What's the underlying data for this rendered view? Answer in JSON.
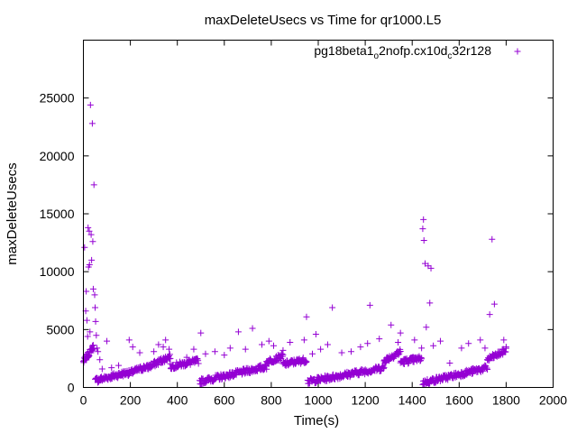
{
  "chart_data": {
    "type": "scatter",
    "title": "maxDeleteUsecs vs Time for qr1000.L5",
    "xlabel": "Time(s)",
    "ylabel": "maxDeleteUsecs",
    "xlim": [
      0,
      2000
    ],
    "ylim": [
      0,
      30000
    ],
    "xticks": [
      0,
      200,
      400,
      600,
      800,
      1000,
      1200,
      1400,
      1600,
      1800,
      2000
    ],
    "yticks": [
      0,
      5000,
      10000,
      15000,
      20000,
      25000
    ],
    "grid": false,
    "legend_position": "top-right",
    "marker": "+",
    "series": [
      {
        "name": "pg18beta1_o2nofp.cx10d_c32r128",
        "legend_parts": [
          {
            "text": "pg18beta1",
            "sub": false
          },
          {
            "text": "o",
            "sub": true
          },
          {
            "text": "2nofp.cx10d",
            "sub": false
          },
          {
            "text": "c",
            "sub": true
          },
          {
            "text": "32r128",
            "sub": false
          }
        ],
        "color": "#9400d3",
        "segments": [
          {
            "x0": 0,
            "x1": 45,
            "y0": 2200,
            "y1": 3600,
            "n": 30
          },
          {
            "x0": 50,
            "x1": 190,
            "y0": 600,
            "y1": 1300,
            "n": 75
          },
          {
            "x0": 190,
            "x1": 270,
            "y0": 1200,
            "y1": 1800,
            "n": 40
          },
          {
            "x0": 270,
            "x1": 370,
            "y0": 1700,
            "y1": 2700,
            "n": 55
          },
          {
            "x0": 370,
            "x1": 490,
            "y0": 1800,
            "y1": 2300,
            "n": 60
          },
          {
            "x0": 495,
            "x1": 780,
            "y0": 500,
            "y1": 1800,
            "n": 140
          },
          {
            "x0": 780,
            "x1": 850,
            "y0": 2200,
            "y1": 2700,
            "n": 35
          },
          {
            "x0": 850,
            "x1": 950,
            "y0": 2000,
            "y1": 2400,
            "n": 50
          },
          {
            "x0": 955,
            "x1": 1280,
            "y0": 500,
            "y1": 1700,
            "n": 160
          },
          {
            "x0": 1280,
            "x1": 1350,
            "y0": 2300,
            "y1": 3100,
            "n": 40
          },
          {
            "x0": 1350,
            "x1": 1440,
            "y0": 2200,
            "y1": 2500,
            "n": 45
          },
          {
            "x0": 1445,
            "x1": 1720,
            "y0": 400,
            "y1": 1700,
            "n": 130
          },
          {
            "x0": 1720,
            "x1": 1800,
            "y0": 2400,
            "y1": 3200,
            "n": 40
          }
        ],
        "outliers": [
          [
            5,
            12100
          ],
          [
            10,
            6600
          ],
          [
            12,
            8300
          ],
          [
            15,
            5800
          ],
          [
            18,
            4400
          ],
          [
            20,
            13800
          ],
          [
            22,
            10400
          ],
          [
            25,
            13500
          ],
          [
            26,
            10600
          ],
          [
            28,
            4800
          ],
          [
            30,
            24400
          ],
          [
            33,
            13200
          ],
          [
            35,
            11000
          ],
          [
            38,
            22800
          ],
          [
            40,
            12600
          ],
          [
            42,
            8500
          ],
          [
            45,
            17500
          ],
          [
            48,
            8000
          ],
          [
            50,
            6900
          ],
          [
            52,
            5700
          ],
          [
            55,
            4500
          ],
          [
            58,
            3400
          ],
          [
            62,
            3100
          ],
          [
            70,
            2400
          ],
          [
            80,
            1600
          ],
          [
            100,
            4000
          ],
          [
            120,
            1700
          ],
          [
            150,
            1900
          ],
          [
            195,
            4100
          ],
          [
            210,
            3500
          ],
          [
            240,
            3000
          ],
          [
            300,
            3100
          ],
          [
            320,
            3700
          ],
          [
            340,
            3500
          ],
          [
            350,
            4100
          ],
          [
            365,
            3300
          ],
          [
            440,
            2600
          ],
          [
            470,
            3300
          ],
          [
            500,
            4700
          ],
          [
            520,
            2900
          ],
          [
            560,
            3100
          ],
          [
            600,
            2800
          ],
          [
            625,
            3400
          ],
          [
            660,
            4800
          ],
          [
            690,
            3300
          ],
          [
            720,
            5100
          ],
          [
            760,
            3700
          ],
          [
            790,
            4000
          ],
          [
            810,
            3600
          ],
          [
            850,
            3200
          ],
          [
            880,
            3900
          ],
          [
            940,
            4100
          ],
          [
            950,
            6100
          ],
          [
            975,
            2900
          ],
          [
            990,
            4600
          ],
          [
            1010,
            3300
          ],
          [
            1040,
            3700
          ],
          [
            1060,
            6900
          ],
          [
            1100,
            3000
          ],
          [
            1140,
            3100
          ],
          [
            1180,
            3500
          ],
          [
            1210,
            3800
          ],
          [
            1220,
            7100
          ],
          [
            1260,
            4200
          ],
          [
            1310,
            5400
          ],
          [
            1340,
            3900
          ],
          [
            1350,
            4700
          ],
          [
            1410,
            4100
          ],
          [
            1440,
            3400
          ],
          [
            1445,
            13700
          ],
          [
            1448,
            14500
          ],
          [
            1450,
            12700
          ],
          [
            1455,
            10700
          ],
          [
            1460,
            5200
          ],
          [
            1468,
            10500
          ],
          [
            1475,
            7300
          ],
          [
            1480,
            10300
          ],
          [
            1490,
            3600
          ],
          [
            1520,
            4000
          ],
          [
            1560,
            2100
          ],
          [
            1610,
            3400
          ],
          [
            1640,
            3800
          ],
          [
            1690,
            4100
          ],
          [
            1710,
            3400
          ],
          [
            1730,
            6300
          ],
          [
            1740,
            12800
          ],
          [
            1750,
            7200
          ],
          [
            1790,
            4100
          ],
          [
            1800,
            3500
          ]
        ]
      }
    ]
  }
}
